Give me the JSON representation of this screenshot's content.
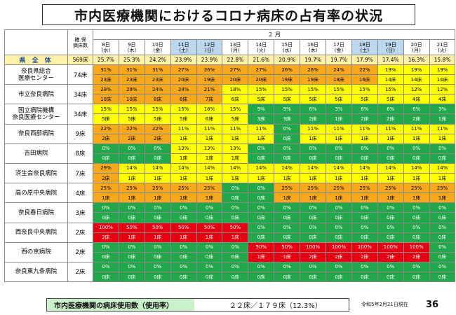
{
  "title": "市内医療機関におけるコロナ病床の占有率の状況",
  "header": {
    "beds_label": "確 保\n病床数",
    "month": "２ 月",
    "dates": [
      {
        "day": "8日",
        "dow": "(水)",
        "weekend": false
      },
      {
        "day": "9日",
        "dow": "(木)",
        "weekend": false
      },
      {
        "day": "10日",
        "dow": "(金)",
        "weekend": false
      },
      {
        "day": "11日",
        "dow": "(土)",
        "weekend": true
      },
      {
        "day": "12日",
        "dow": "(日)",
        "weekend": true
      },
      {
        "day": "13日",
        "dow": "(月)",
        "weekend": false
      },
      {
        "day": "14日",
        "dow": "(火)",
        "weekend": false
      },
      {
        "day": "15日",
        "dow": "(水)",
        "weekend": false
      },
      {
        "day": "16日",
        "dow": "(木)",
        "weekend": false
      },
      {
        "day": "17日",
        "dow": "(金)",
        "weekend": false
      },
      {
        "day": "18日",
        "dow": "(土)",
        "weekend": true
      },
      {
        "day": "19日",
        "dow": "(日)",
        "weekend": true
      },
      {
        "day": "20日",
        "dow": "(月)",
        "weekend": false
      },
      {
        "day": "21日",
        "dow": "(火)",
        "weekend": false
      }
    ]
  },
  "total": {
    "label": "県 全 体",
    "beds": "569床",
    "values": [
      "25.7%",
      "25.3%",
      "24.2%",
      "23.9%",
      "23.9%",
      "22.8%",
      "21.6%",
      "20.9%",
      "19.7%",
      "19.7%",
      "17.9%",
      "17.4%",
      "16.3%",
      "15.8%"
    ]
  },
  "legend_colors": {
    "o": "#f7a81b",
    "y": "#ffff00",
    "g": "#22a84a",
    "r": "#e60012"
  },
  "hospitals": [
    {
      "name": "奈良県総合\n医療センター",
      "beds": "74床",
      "pct": [
        "31%",
        "31%",
        "31%",
        "27%",
        "26%",
        "27%",
        "27%",
        "26%",
        "26%",
        "24%",
        "22%",
        "19%",
        "19%",
        "19%"
      ],
      "cnt": [
        "23床",
        "23床",
        "23床",
        "20床",
        "19床",
        "20床",
        "20床",
        "19床",
        "19床",
        "18床",
        "16床",
        "14床",
        "14床",
        "14床"
      ],
      "col": [
        "o",
        "o",
        "o",
        "o",
        "o",
        "o",
        "o",
        "o",
        "o",
        "o",
        "o",
        "y",
        "y",
        "y"
      ]
    },
    {
      "name": "市立奈良病院",
      "beds": "34床",
      "pct": [
        "29%",
        "29%",
        "24%",
        "24%",
        "21%",
        "18%",
        "15%",
        "15%",
        "15%",
        "15%",
        "15%",
        "15%",
        "12%",
        "12%"
      ],
      "cnt": [
        "10床",
        "10床",
        "8床",
        "8床",
        "7床",
        "6床",
        "5床",
        "5床",
        "5床",
        "5床",
        "5床",
        "5床",
        "4床",
        "4床"
      ],
      "col": [
        "o",
        "o",
        "o",
        "o",
        "o",
        "y",
        "y",
        "y",
        "y",
        "y",
        "y",
        "y",
        "y",
        "y"
      ]
    },
    {
      "name": "国立病院機構\n奈良医療センター",
      "beds": "34床",
      "pct": [
        "15%",
        "15%",
        "15%",
        "15%",
        "18%",
        "15%",
        "9%",
        "9%",
        "6%",
        "3%",
        "6%",
        "6%",
        "6%",
        "3%"
      ],
      "cnt": [
        "5床",
        "5床",
        "5床",
        "5床",
        "6床",
        "5床",
        "3床",
        "3床",
        "2床",
        "1床",
        "2床",
        "2床",
        "2床",
        "1床"
      ],
      "col": [
        "y",
        "y",
        "y",
        "y",
        "y",
        "y",
        "g",
        "g",
        "g",
        "g",
        "g",
        "g",
        "g",
        "g"
      ]
    },
    {
      "name": "奈良西部病院",
      "beds": "9床",
      "pct": [
        "22%",
        "22%",
        "22%",
        "11%",
        "11%",
        "11%",
        "11%",
        "0%",
        "11%",
        "11%",
        "11%",
        "11%",
        "11%",
        "11%"
      ],
      "cnt": [
        "2床",
        "2床",
        "2床",
        "1床",
        "1床",
        "1床",
        "1床",
        "0床",
        "1床",
        "1床",
        "1床",
        "1床",
        "1床",
        "1床"
      ],
      "col": [
        "o",
        "o",
        "o",
        "y",
        "y",
        "y",
        "y",
        "g",
        "y",
        "y",
        "y",
        "y",
        "y",
        "y"
      ]
    },
    {
      "name": "吉田病院",
      "beds": "8床",
      "pct": [
        "0%",
        "0%",
        "0%",
        "13%",
        "13%",
        "13%",
        "0%",
        "0%",
        "0%",
        "0%",
        "0%",
        "0%",
        "0%",
        "0%"
      ],
      "cnt": [
        "0床",
        "0床",
        "0床",
        "1床",
        "1床",
        "1床",
        "0床",
        "0床",
        "0床",
        "0床",
        "0床",
        "0床",
        "0床",
        "0床"
      ],
      "col": [
        "g",
        "g",
        "g",
        "y",
        "y",
        "y",
        "g",
        "g",
        "g",
        "g",
        "g",
        "g",
        "g",
        "g"
      ]
    },
    {
      "name": "済生会奈良病院",
      "beds": "7床",
      "pct": [
        "29%",
        "14%",
        "14%",
        "14%",
        "14%",
        "14%",
        "14%",
        "14%",
        "14%",
        "14%",
        "14%",
        "14%",
        "14%",
        "14%"
      ],
      "cnt": [
        "2床",
        "1床",
        "1床",
        "1床",
        "1床",
        "1床",
        "1床",
        "1床",
        "1床",
        "1床",
        "1床",
        "1床",
        "1床",
        "1床"
      ],
      "col": [
        "o",
        "y",
        "y",
        "y",
        "y",
        "y",
        "y",
        "y",
        "y",
        "y",
        "y",
        "y",
        "y",
        "y"
      ]
    },
    {
      "name": "高の原中央病院",
      "beds": "4床",
      "pct": [
        "25%",
        "25%",
        "25%",
        "25%",
        "25%",
        "0%",
        "0%",
        "25%",
        "25%",
        "25%",
        "25%",
        "25%",
        "25%",
        "25%"
      ],
      "cnt": [
        "1床",
        "1床",
        "1床",
        "1床",
        "1床",
        "0床",
        "0床",
        "1床",
        "1床",
        "1床",
        "1床",
        "1床",
        "1床",
        "1床"
      ],
      "col": [
        "o",
        "o",
        "o",
        "o",
        "o",
        "g",
        "g",
        "o",
        "o",
        "o",
        "o",
        "o",
        "o",
        "o"
      ]
    },
    {
      "name": "奈良春日病院",
      "beds": "3床",
      "pct": [
        "0%",
        "0%",
        "0%",
        "0%",
        "0%",
        "0%",
        "0%",
        "0%",
        "0%",
        "0%",
        "0%",
        "0%",
        "0%",
        "0%"
      ],
      "cnt": [
        "0床",
        "0床",
        "0床",
        "0床",
        "0床",
        "0床",
        "0床",
        "0床",
        "0床",
        "0床",
        "0床",
        "0床",
        "0床",
        "0床"
      ],
      "col": [
        "g",
        "g",
        "g",
        "g",
        "g",
        "g",
        "g",
        "g",
        "g",
        "g",
        "g",
        "g",
        "g",
        "g"
      ]
    },
    {
      "name": "西奈良中央病院",
      "beds": "2床",
      "pct": [
        "100%",
        "50%",
        "50%",
        "50%",
        "50%",
        "50%",
        "0%",
        "0%",
        "0%",
        "0%",
        "0%",
        "0%",
        "0%",
        "0%"
      ],
      "cnt": [
        "2床",
        "1床",
        "1床",
        "1床",
        "1床",
        "1床",
        "0床",
        "0床",
        "0床",
        "0床",
        "0床",
        "0床",
        "0床",
        "0床"
      ],
      "col": [
        "r",
        "r",
        "r",
        "r",
        "r",
        "r",
        "g",
        "g",
        "g",
        "g",
        "g",
        "g",
        "g",
        "g"
      ]
    },
    {
      "name": "西の京病院",
      "beds": "2床",
      "pct": [
        "0%",
        "0%",
        "0%",
        "0%",
        "0%",
        "0%",
        "50%",
        "50%",
        "100%",
        "100%",
        "100%",
        "100%",
        "100%",
        "0%"
      ],
      "cnt": [
        "0床",
        "0床",
        "0床",
        "0床",
        "0床",
        "0床",
        "1床",
        "1床",
        "2床",
        "2床",
        "2床",
        "2床",
        "2床",
        "0床"
      ],
      "col": [
        "g",
        "g",
        "g",
        "g",
        "g",
        "g",
        "r",
        "r",
        "r",
        "r",
        "r",
        "r",
        "r",
        "g"
      ]
    },
    {
      "name": "奈良東九条病院",
      "beds": "2床",
      "pct": [
        "0%",
        "0%",
        "0%",
        "0%",
        "0%",
        "0%",
        "0%",
        "0%",
        "0%",
        "0%",
        "0%",
        "0%",
        "0%",
        "0%"
      ],
      "cnt": [
        "0床",
        "0床",
        "0床",
        "0床",
        "0床",
        "0床",
        "0床",
        "0床",
        "0床",
        "0床",
        "0床",
        "0床",
        "0床",
        "0床"
      ],
      "col": [
        "g",
        "g",
        "g",
        "g",
        "g",
        "g",
        "g",
        "g",
        "g",
        "g",
        "g",
        "g",
        "g",
        "g"
      ]
    }
  ],
  "footer": {
    "label": "市内医療機関の病床使用数（使用率）",
    "value": "２２床／１７９床（12.3%）",
    "asof": "令和5年2月21日現在",
    "page": "36"
  }
}
